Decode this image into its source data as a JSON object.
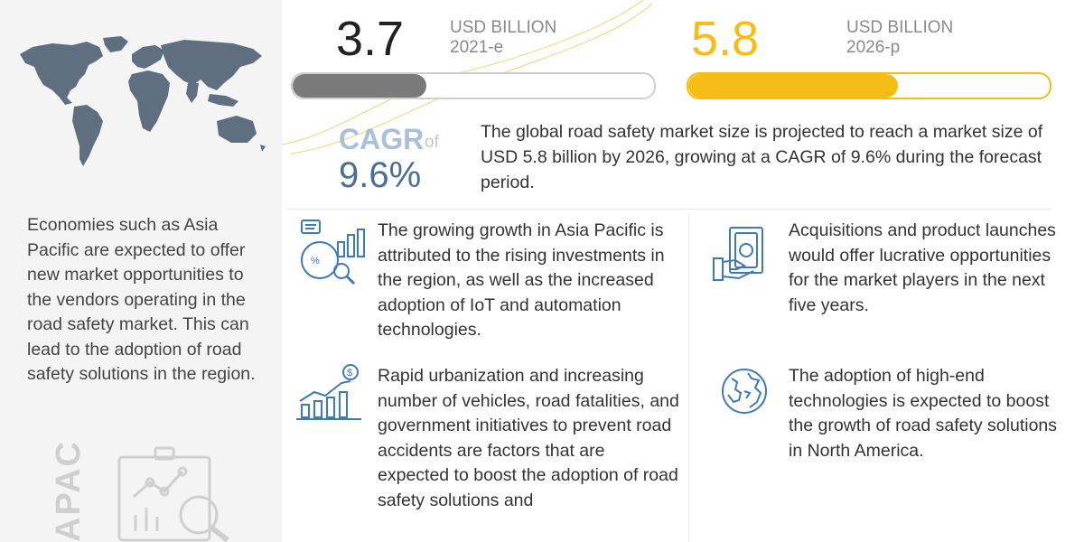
{
  "market": {
    "value_2021": "3.7",
    "unit_2021": "USD BILLION",
    "year_2021": "2021-e",
    "value_2026": "5.8",
    "unit_2026": "USD BILLION",
    "year_2026": "2026-p",
    "bar_fill_2021": 0.37,
    "bar_fill_2026": 0.58
  },
  "cagr": {
    "label": "CAGR",
    "of": "of",
    "value": "9.6%"
  },
  "summary": "The global road safety market size is projected to reach a market size of USD 5.8 billion by 2026, growing at a CAGR of 9.6% during the forecast period.",
  "left": {
    "text": "Economies such as Asia Pacific are expected to offer new market opportunities to the vendors operating in the road safety market. This can lead to the adoption of road safety solutions in the region.",
    "region_label": "APAC"
  },
  "points": [
    {
      "text": "The growing growth in Asia Pacific is attributed to the rising investments in the region, as well as the increased adoption of IoT and automation technologies.",
      "icon": "analytics-report-icon"
    },
    {
      "text": "Acquisitions and product launches would offer lucrative opportunities for the market players in the next five years.",
      "icon": "money-hand-icon"
    },
    {
      "text": "Rapid urbanization and increasing number of vehicles, road fatalities, and government initiatives to prevent road accidents are factors that are expected to boost the adoption of road safety solutions and",
      "icon": "growth-chart-dollar-icon"
    },
    {
      "text": "The adoption of high-end technologies is expected to boost the growth of road safety solutions in North America.",
      "icon": "globe-icon"
    }
  ],
  "colors": {
    "accent_yellow": "#f6bd16",
    "bar_gray": "#7a7a7a",
    "cagr_blue": "#4b6f94",
    "icon_blue": "#3d7ab8",
    "map_gray": "#5f6f80"
  }
}
